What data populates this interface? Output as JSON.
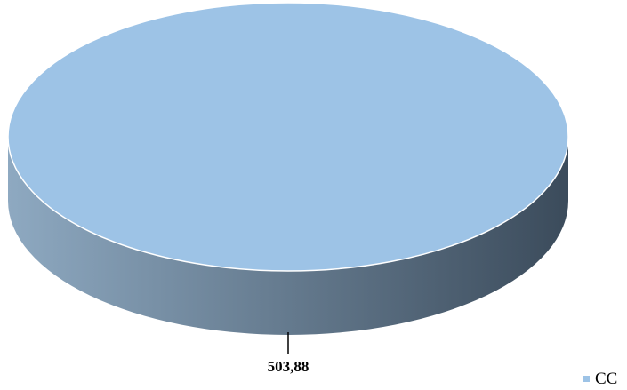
{
  "chart_data": {
    "type": "pie",
    "variant": "3d",
    "categories": [
      "CC"
    ],
    "values": [
      503.88
    ],
    "value_labels": [
      "503,88"
    ],
    "title": "",
    "legend": {
      "position": "bottom-right",
      "entries": [
        "CC"
      ]
    },
    "colors": {
      "slice_top": "#9dc3e6",
      "side_light": "#8ea9c1",
      "side_dark": "#3b4b5b",
      "leader_line": "#000000"
    }
  }
}
